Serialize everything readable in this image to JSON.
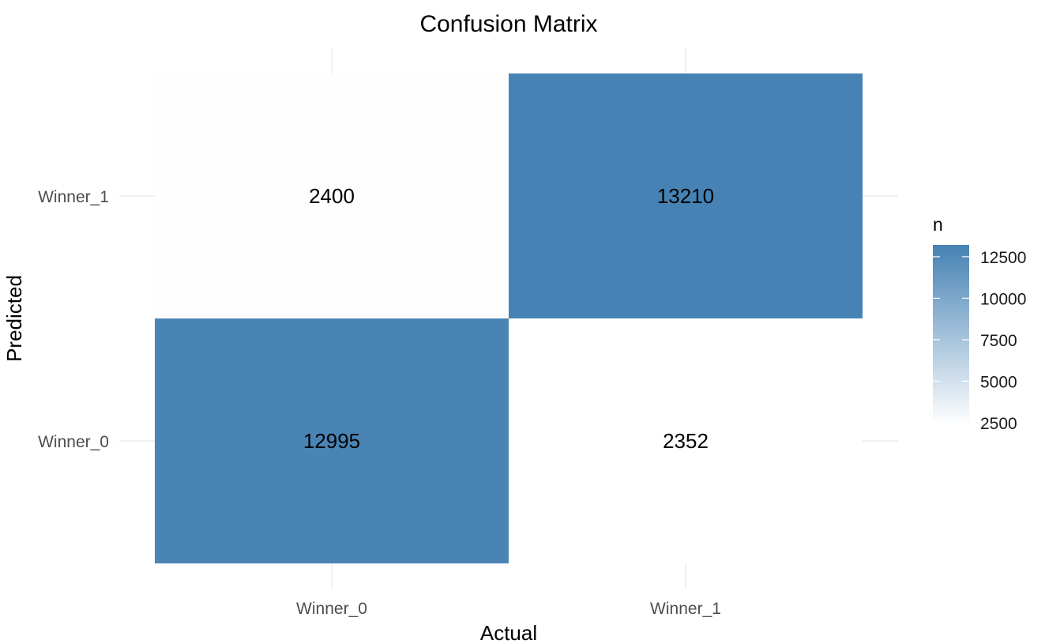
{
  "chart_data": {
    "type": "heatmap",
    "title": "Confusion Matrix",
    "xlabel": "Actual",
    "ylabel": "Predicted",
    "x_categories": [
      "Winner_0",
      "Winner_1"
    ],
    "y_categories": [
      "Winner_0",
      "Winner_1"
    ],
    "cells": [
      {
        "actual": "Winner_0",
        "predicted": "Winner_1",
        "n": 2400
      },
      {
        "actual": "Winner_1",
        "predicted": "Winner_1",
        "n": 13210
      },
      {
        "actual": "Winner_0",
        "predicted": "Winner_0",
        "n": 12995
      },
      {
        "actual": "Winner_1",
        "predicted": "Winner_0",
        "n": 2352
      }
    ],
    "legend": {
      "title": "n",
      "position": "right",
      "ticks": [
        2500,
        5000,
        7500,
        10000,
        12500
      ]
    },
    "color_scale": {
      "low": "#ffffff",
      "high": "#4682b4"
    },
    "grid": true
  }
}
